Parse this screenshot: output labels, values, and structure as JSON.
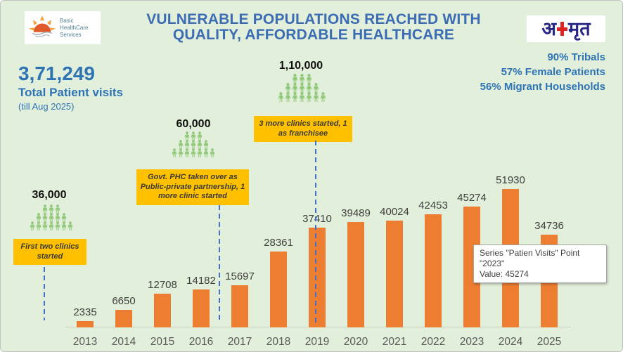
{
  "colors": {
    "background": "#E2EFDA",
    "bar": "#ED7D31",
    "note_bg": "#FFC000",
    "title_blue": "#3B6CB4",
    "stat_blue": "#2E74B5",
    "people_green": "#8FC878",
    "dash_blue": "#4472C4",
    "value_grey": "#404040",
    "year_grey": "#595959",
    "cross_red": "#E02424",
    "logo_navy": "#272786"
  },
  "header": {
    "logo_left_lines": {
      "l1": "Basic",
      "l2": "HealthCare",
      "l3": "Services"
    },
    "title_line1": "VULNERABLE POPULATIONS REACHED WITH",
    "title_line2": "QUALITY, AFFORDABLE HEALTHCARE",
    "logo_right": {
      "pre": "अ",
      "post": "मृत"
    }
  },
  "summary": {
    "total_value": "3,71,249",
    "total_label": "Total Patient visits",
    "period": "(till Aug 2025)"
  },
  "demographics": {
    "items": [
      "90% Tribals",
      "57% Female Patients",
      "56% Migrant Households"
    ]
  },
  "chart_data": {
    "type": "bar",
    "title": "VULNERABLE POPULATIONS REACHED WITH QUALITY, AFFORDABLE HEALTHCARE",
    "categories": [
      "2013",
      "2014",
      "2015",
      "2016",
      "2017",
      "2018",
      "2019",
      "2020",
      "2021",
      "2022",
      "2023",
      "2024",
      "2025"
    ],
    "series": [
      {
        "name": "Patien Visits",
        "values": [
          2335,
          6650,
          12708,
          14182,
          15697,
          28361,
          37410,
          39489,
          40024,
          42453,
          45274,
          51930,
          34736
        ]
      }
    ],
    "xlabel": "",
    "ylabel": "",
    "ylim": [
      0,
      52000
    ],
    "grid": false,
    "legend": false,
    "value_labels": true,
    "annotations": [
      {
        "reach_label": "36,000",
        "note": "First two clinics started",
        "pyramid_rows": [
          3,
          5,
          7
        ]
      },
      {
        "reach_label": "60,000",
        "note": "Govt. PHC taken over as Public-private partnership, 1 more clinic started",
        "pyramid_rows": [
          3,
          5,
          7
        ]
      },
      {
        "reach_label": "1,10,000",
        "note": "3 more clinics started, 1 as franchisee",
        "pyramid_rows": [
          3,
          5,
          7
        ]
      }
    ]
  },
  "tooltip": {
    "line1": "Series \"Patien Visits\" Point \"2023\"",
    "line2": "Value: 45274"
  }
}
